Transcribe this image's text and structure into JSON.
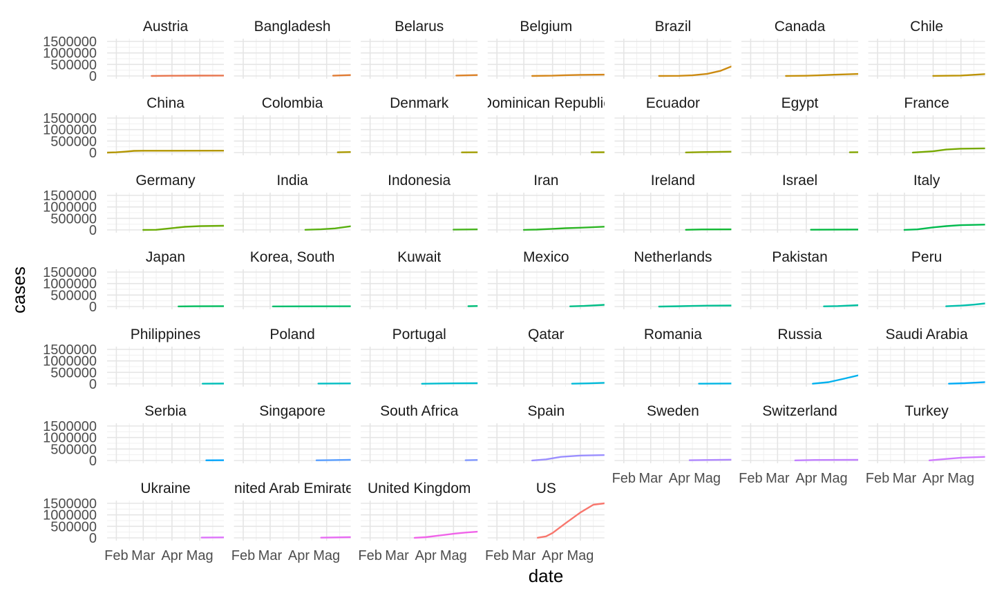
{
  "chart_data": {
    "type": "line",
    "xlabel": "date",
    "ylabel": "cases",
    "x_ticks": [
      "Feb",
      "Mar",
      "Apr",
      "Mag"
    ],
    "x_range": [
      "2020-01-22",
      "2020-05-27"
    ],
    "y_ticks": [
      0,
      500000,
      1000000,
      1500000
    ],
    "y_tick_labels": [
      "0",
      "500000",
      "1000000",
      "1500000"
    ],
    "ylim": [
      0,
      1500000
    ],
    "grid": true,
    "legend": "none",
    "layout": {
      "columns": 7,
      "rows": 7
    },
    "panels": [
      {
        "name": "Austria",
        "color": "#e8764f",
        "points": [
          [
            "2020-03-10",
            180
          ],
          [
            "2020-03-31",
            10180
          ],
          [
            "2020-04-30",
            15400
          ],
          [
            "2020-05-27",
            16600
          ]
        ]
      },
      {
        "name": "Bangladesh",
        "color": "#e17b33",
        "points": [
          [
            "2020-05-08",
            13000
          ],
          [
            "2020-05-27",
            38000
          ]
        ]
      },
      {
        "name": "Belarus",
        "color": "#dc8127",
        "points": [
          [
            "2020-05-04",
            17000
          ],
          [
            "2020-05-27",
            39000
          ]
        ]
      },
      {
        "name": "Belgium",
        "color": "#d4861a",
        "points": [
          [
            "2020-03-10",
            270
          ],
          [
            "2020-04-01",
            13000
          ],
          [
            "2020-04-15",
            33500
          ],
          [
            "2020-05-01",
            49000
          ],
          [
            "2020-05-27",
            57500
          ]
        ]
      },
      {
        "name": "Brazil",
        "color": "#cc8a10",
        "points": [
          [
            "2020-03-10",
            30
          ],
          [
            "2020-04-01",
            6800
          ],
          [
            "2020-04-15",
            28300
          ],
          [
            "2020-05-01",
            92000
          ],
          [
            "2020-05-15",
            220000
          ],
          [
            "2020-05-27",
            411800
          ]
        ]
      },
      {
        "name": "Canada",
        "color": "#c48f0a",
        "points": [
          [
            "2020-03-10",
            90
          ],
          [
            "2020-04-01",
            9500
          ],
          [
            "2020-04-15",
            28300
          ],
          [
            "2020-05-01",
            55000
          ],
          [
            "2020-05-27",
            88000
          ]
        ]
      },
      {
        "name": "Chile",
        "color": "#bc9305",
        "points": [
          [
            "2020-04-01",
            3000
          ],
          [
            "2020-04-15",
            8000
          ],
          [
            "2020-05-01",
            17000
          ],
          [
            "2020-05-27",
            82000
          ]
        ]
      },
      {
        "name": "China",
        "color": "#b39600",
        "points": [
          [
            "2020-01-22",
            550
          ],
          [
            "2020-02-01",
            12000
          ],
          [
            "2020-02-10",
            40000
          ],
          [
            "2020-02-20",
            75000
          ],
          [
            "2020-03-01",
            80000
          ],
          [
            "2020-04-01",
            82300
          ],
          [
            "2020-05-27",
            84100
          ]
        ]
      },
      {
        "name": "Colombia",
        "color": "#aa9900",
        "points": [
          [
            "2020-05-13",
            12300
          ],
          [
            "2020-05-27",
            23000
          ]
        ]
      },
      {
        "name": "Denmark",
        "color": "#a29d00",
        "points": [
          [
            "2020-05-10",
            10500
          ],
          [
            "2020-05-27",
            11500
          ]
        ]
      },
      {
        "name": "Dominican Republic",
        "color": "#98a000",
        "points": [
          [
            "2020-05-13",
            11000
          ],
          [
            "2020-05-27",
            16000
          ]
        ]
      },
      {
        "name": "Ecuador",
        "color": "#8ea300",
        "points": [
          [
            "2020-04-08",
            4500
          ],
          [
            "2020-04-25",
            22000
          ],
          [
            "2020-05-27",
            38000
          ]
        ]
      },
      {
        "name": "Egypt",
        "color": "#83a600",
        "points": [
          [
            "2020-05-18",
            12800
          ],
          [
            "2020-05-27",
            18800
          ]
        ]
      },
      {
        "name": "France",
        "color": "#77a900",
        "points": [
          [
            "2020-03-10",
            1800
          ],
          [
            "2020-04-01",
            57000
          ],
          [
            "2020-04-15",
            131000
          ],
          [
            "2020-04-30",
            167000
          ],
          [
            "2020-05-27",
            183000
          ]
        ]
      },
      {
        "name": "Germany",
        "color": "#6aac06",
        "points": [
          [
            "2020-03-01",
            130
          ],
          [
            "2020-03-15",
            5800
          ],
          [
            "2020-04-01",
            77000
          ],
          [
            "2020-04-15",
            134000
          ],
          [
            "2020-05-01",
            164000
          ],
          [
            "2020-05-27",
            181000
          ]
        ]
      },
      {
        "name": "India",
        "color": "#58b00f",
        "points": [
          [
            "2020-04-08",
            5900
          ],
          [
            "2020-04-25",
            26500
          ],
          [
            "2020-05-10",
            67000
          ],
          [
            "2020-05-27",
            158000
          ]
        ]
      },
      {
        "name": "Indonesia",
        "color": "#44b319",
        "points": [
          [
            "2020-05-01",
            10500
          ],
          [
            "2020-05-27",
            24000
          ]
        ]
      },
      {
        "name": "Iran",
        "color": "#2db524",
        "points": [
          [
            "2020-03-01",
            1500
          ],
          [
            "2020-03-15",
            14000
          ],
          [
            "2020-04-01",
            47000
          ],
          [
            "2020-04-15",
            76000
          ],
          [
            "2020-05-01",
            95000
          ],
          [
            "2020-05-27",
            141000
          ]
        ]
      },
      {
        "name": "Ireland",
        "color": "#0eb830",
        "points": [
          [
            "2020-04-08",
            6000
          ],
          [
            "2020-04-25",
            19600
          ],
          [
            "2020-05-27",
            24800
          ]
        ]
      },
      {
        "name": "Israel",
        "color": "#00b93f",
        "points": [
          [
            "2020-04-06",
            8600
          ],
          [
            "2020-05-27",
            16900
          ]
        ]
      },
      {
        "name": "Italy",
        "color": "#00bb4e",
        "points": [
          [
            "2020-03-01",
            1700
          ],
          [
            "2020-03-15",
            24700
          ],
          [
            "2020-04-01",
            110000
          ],
          [
            "2020-04-15",
            165000
          ],
          [
            "2020-05-01",
            207000
          ],
          [
            "2020-05-27",
            231000
          ]
        ]
      },
      {
        "name": "Japan",
        "color": "#00bc5d",
        "points": [
          [
            "2020-04-08",
            4700
          ],
          [
            "2020-04-25",
            13200
          ],
          [
            "2020-05-27",
            16700
          ]
        ]
      },
      {
        "name": "Korea, South",
        "color": "#00bd6b",
        "points": [
          [
            "2020-03-04",
            5300
          ],
          [
            "2020-04-01",
            9900
          ],
          [
            "2020-05-27",
            11300
          ]
        ]
      },
      {
        "name": "Kuwait",
        "color": "#00be79",
        "points": [
          [
            "2020-05-17",
            14800
          ],
          [
            "2020-05-27",
            23300
          ]
        ]
      },
      {
        "name": "Mexico",
        "color": "#00be86",
        "points": [
          [
            "2020-04-20",
            8300
          ],
          [
            "2020-05-05",
            26000
          ],
          [
            "2020-05-27",
            74000
          ]
        ]
      },
      {
        "name": "Netherlands",
        "color": "#00bf93",
        "points": [
          [
            "2020-03-10",
            380
          ],
          [
            "2020-04-01",
            13600
          ],
          [
            "2020-04-15",
            28100
          ],
          [
            "2020-05-01",
            39500
          ],
          [
            "2020-05-27",
            45800
          ]
        ]
      },
      {
        "name": "Pakistan",
        "color": "#00bfa0",
        "points": [
          [
            "2020-04-20",
            8400
          ],
          [
            "2020-05-05",
            22000
          ],
          [
            "2020-05-27",
            59000
          ]
        ]
      },
      {
        "name": "Peru",
        "color": "#00bfac",
        "points": [
          [
            "2020-04-15",
            11500
          ],
          [
            "2020-05-01",
            40500
          ],
          [
            "2020-05-15",
            84500
          ],
          [
            "2020-05-27",
            135900
          ]
        ]
      },
      {
        "name": "Philippines",
        "color": "#00bfb8",
        "points": [
          [
            "2020-05-04",
            9500
          ],
          [
            "2020-05-27",
            15000
          ]
        ]
      },
      {
        "name": "Poland",
        "color": "#00bec3",
        "points": [
          [
            "2020-04-22",
            10500
          ],
          [
            "2020-05-27",
            22500
          ]
        ]
      },
      {
        "name": "Portugal",
        "color": "#00bdcf",
        "points": [
          [
            "2020-03-28",
            5200
          ],
          [
            "2020-04-15",
            18000
          ],
          [
            "2020-05-01",
            25000
          ],
          [
            "2020-05-27",
            31000
          ]
        ]
      },
      {
        "name": "Qatar",
        "color": "#00bad9",
        "points": [
          [
            "2020-04-22",
            8500
          ],
          [
            "2020-05-10",
            24000
          ],
          [
            "2020-05-27",
            48000
          ]
        ]
      },
      {
        "name": "Romania",
        "color": "#00b6e4",
        "points": [
          [
            "2020-04-22",
            10000
          ],
          [
            "2020-05-27",
            18600
          ]
        ]
      },
      {
        "name": "Russia",
        "color": "#00b1ee",
        "points": [
          [
            "2020-04-08",
            8700
          ],
          [
            "2020-04-25",
            74600
          ],
          [
            "2020-05-10",
            210000
          ],
          [
            "2020-05-27",
            370000
          ]
        ]
      },
      {
        "name": "Saudi Arabia",
        "color": "#00abf6",
        "points": [
          [
            "2020-04-18",
            8300
          ],
          [
            "2020-05-05",
            30000
          ],
          [
            "2020-05-27",
            78500
          ]
        ]
      },
      {
        "name": "Serbia",
        "color": "#00a4fc",
        "points": [
          [
            "2020-05-08",
            10000
          ],
          [
            "2020-05-27",
            11300
          ]
        ]
      },
      {
        "name": "Singapore",
        "color": "#579dff",
        "points": [
          [
            "2020-04-20",
            8000
          ],
          [
            "2020-05-05",
            19000
          ],
          [
            "2020-05-27",
            33000
          ]
        ]
      },
      {
        "name": "South Africa",
        "color": "#7f96ff",
        "points": [
          [
            "2020-05-14",
            12000
          ],
          [
            "2020-05-27",
            25000
          ]
        ]
      },
      {
        "name": "Spain",
        "color": "#9a8eff",
        "points": [
          [
            "2020-03-10",
            1700
          ],
          [
            "2020-03-25",
            50000
          ],
          [
            "2020-04-10",
            158000
          ],
          [
            "2020-05-01",
            215000
          ],
          [
            "2020-05-27",
            237000
          ]
        ]
      },
      {
        "name": "Sweden",
        "color": "#af87ff",
        "points": [
          [
            "2020-04-12",
            10500
          ],
          [
            "2020-05-27",
            35000
          ]
        ]
      },
      {
        "name": "Switzerland",
        "color": "#c180ff",
        "points": [
          [
            "2020-03-20",
            5300
          ],
          [
            "2020-04-10",
            24500
          ],
          [
            "2020-05-27",
            30800
          ]
        ]
      },
      {
        "name": "Turkey",
        "color": "#d07aff",
        "points": [
          [
            "2020-03-28",
            7400
          ],
          [
            "2020-04-15",
            69400
          ],
          [
            "2020-05-01",
            122000
          ],
          [
            "2020-05-27",
            158800
          ]
        ]
      },
      {
        "name": "Ukraine",
        "color": "#dd72fb",
        "points": [
          [
            "2020-05-03",
            11400
          ],
          [
            "2020-05-27",
            21600
          ]
        ]
      },
      {
        "name": "United Arab Emirates",
        "color": "#e76bf3",
        "points": [
          [
            "2020-04-25",
            10400
          ],
          [
            "2020-05-27",
            31000
          ]
        ]
      },
      {
        "name": "United Kingdom",
        "color": "#f063e9",
        "points": [
          [
            "2020-03-20",
            4000
          ],
          [
            "2020-04-01",
            29800
          ],
          [
            "2020-04-15",
            99000
          ],
          [
            "2020-05-01",
            178000
          ],
          [
            "2020-05-15",
            235000
          ],
          [
            "2020-05-27",
            268000
          ]
        ]
      },
      {
        "name": "US",
        "color": "#f8766d",
        "points": [
          [
            "2020-03-16",
            4600
          ],
          [
            "2020-03-25",
            65000
          ],
          [
            "2020-04-01",
            214000
          ],
          [
            "2020-04-15",
            636000
          ],
          [
            "2020-05-01",
            1100000
          ],
          [
            "2020-05-15",
            1440000
          ],
          [
            "2020-05-27",
            1700000
          ]
        ]
      }
    ]
  }
}
